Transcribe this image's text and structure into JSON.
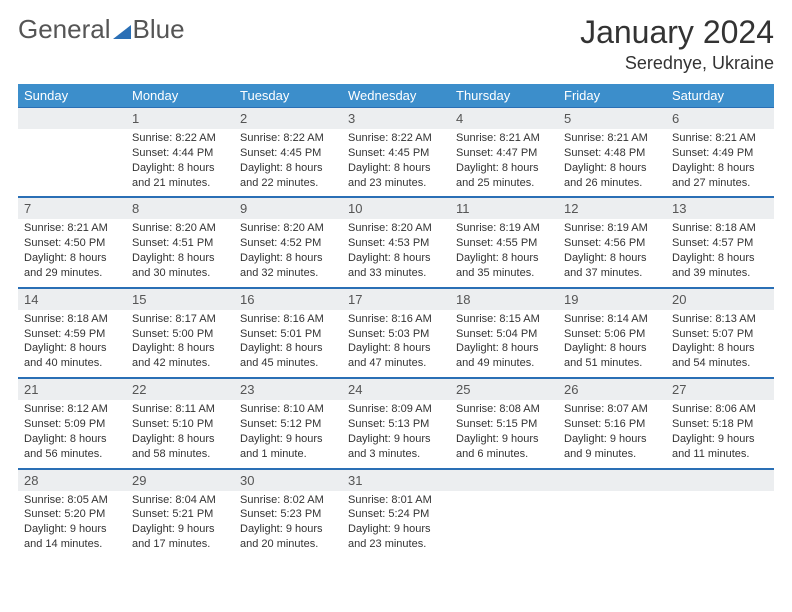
{
  "brand": {
    "part1": "General",
    "part2": "Blue"
  },
  "title": "January 2024",
  "location": "Serednye, Ukraine",
  "colors": {
    "header_bg": "#3c8ecb",
    "rule": "#2a6fb5",
    "daynum_bg": "#eceef0",
    "text": "#333333"
  },
  "fonts": {
    "title_size": 32,
    "location_size": 18,
    "header_size": 13,
    "body_size": 11
  },
  "daysOfWeek": [
    "Sunday",
    "Monday",
    "Tuesday",
    "Wednesday",
    "Thursday",
    "Friday",
    "Saturday"
  ],
  "weeks": [
    [
      {
        "num": "",
        "sunrise": "",
        "sunset": "",
        "daylight": ""
      },
      {
        "num": "1",
        "sunrise": "Sunrise: 8:22 AM",
        "sunset": "Sunset: 4:44 PM",
        "daylight": "Daylight: 8 hours and 21 minutes."
      },
      {
        "num": "2",
        "sunrise": "Sunrise: 8:22 AM",
        "sunset": "Sunset: 4:45 PM",
        "daylight": "Daylight: 8 hours and 22 minutes."
      },
      {
        "num": "3",
        "sunrise": "Sunrise: 8:22 AM",
        "sunset": "Sunset: 4:45 PM",
        "daylight": "Daylight: 8 hours and 23 minutes."
      },
      {
        "num": "4",
        "sunrise": "Sunrise: 8:21 AM",
        "sunset": "Sunset: 4:47 PM",
        "daylight": "Daylight: 8 hours and 25 minutes."
      },
      {
        "num": "5",
        "sunrise": "Sunrise: 8:21 AM",
        "sunset": "Sunset: 4:48 PM",
        "daylight": "Daylight: 8 hours and 26 minutes."
      },
      {
        "num": "6",
        "sunrise": "Sunrise: 8:21 AM",
        "sunset": "Sunset: 4:49 PM",
        "daylight": "Daylight: 8 hours and 27 minutes."
      }
    ],
    [
      {
        "num": "7",
        "sunrise": "Sunrise: 8:21 AM",
        "sunset": "Sunset: 4:50 PM",
        "daylight": "Daylight: 8 hours and 29 minutes."
      },
      {
        "num": "8",
        "sunrise": "Sunrise: 8:20 AM",
        "sunset": "Sunset: 4:51 PM",
        "daylight": "Daylight: 8 hours and 30 minutes."
      },
      {
        "num": "9",
        "sunrise": "Sunrise: 8:20 AM",
        "sunset": "Sunset: 4:52 PM",
        "daylight": "Daylight: 8 hours and 32 minutes."
      },
      {
        "num": "10",
        "sunrise": "Sunrise: 8:20 AM",
        "sunset": "Sunset: 4:53 PM",
        "daylight": "Daylight: 8 hours and 33 minutes."
      },
      {
        "num": "11",
        "sunrise": "Sunrise: 8:19 AM",
        "sunset": "Sunset: 4:55 PM",
        "daylight": "Daylight: 8 hours and 35 minutes."
      },
      {
        "num": "12",
        "sunrise": "Sunrise: 8:19 AM",
        "sunset": "Sunset: 4:56 PM",
        "daylight": "Daylight: 8 hours and 37 minutes."
      },
      {
        "num": "13",
        "sunrise": "Sunrise: 8:18 AM",
        "sunset": "Sunset: 4:57 PM",
        "daylight": "Daylight: 8 hours and 39 minutes."
      }
    ],
    [
      {
        "num": "14",
        "sunrise": "Sunrise: 8:18 AM",
        "sunset": "Sunset: 4:59 PM",
        "daylight": "Daylight: 8 hours and 40 minutes."
      },
      {
        "num": "15",
        "sunrise": "Sunrise: 8:17 AM",
        "sunset": "Sunset: 5:00 PM",
        "daylight": "Daylight: 8 hours and 42 minutes."
      },
      {
        "num": "16",
        "sunrise": "Sunrise: 8:16 AM",
        "sunset": "Sunset: 5:01 PM",
        "daylight": "Daylight: 8 hours and 45 minutes."
      },
      {
        "num": "17",
        "sunrise": "Sunrise: 8:16 AM",
        "sunset": "Sunset: 5:03 PM",
        "daylight": "Daylight: 8 hours and 47 minutes."
      },
      {
        "num": "18",
        "sunrise": "Sunrise: 8:15 AM",
        "sunset": "Sunset: 5:04 PM",
        "daylight": "Daylight: 8 hours and 49 minutes."
      },
      {
        "num": "19",
        "sunrise": "Sunrise: 8:14 AM",
        "sunset": "Sunset: 5:06 PM",
        "daylight": "Daylight: 8 hours and 51 minutes."
      },
      {
        "num": "20",
        "sunrise": "Sunrise: 8:13 AM",
        "sunset": "Sunset: 5:07 PM",
        "daylight": "Daylight: 8 hours and 54 minutes."
      }
    ],
    [
      {
        "num": "21",
        "sunrise": "Sunrise: 8:12 AM",
        "sunset": "Sunset: 5:09 PM",
        "daylight": "Daylight: 8 hours and 56 minutes."
      },
      {
        "num": "22",
        "sunrise": "Sunrise: 8:11 AM",
        "sunset": "Sunset: 5:10 PM",
        "daylight": "Daylight: 8 hours and 58 minutes."
      },
      {
        "num": "23",
        "sunrise": "Sunrise: 8:10 AM",
        "sunset": "Sunset: 5:12 PM",
        "daylight": "Daylight: 9 hours and 1 minute."
      },
      {
        "num": "24",
        "sunrise": "Sunrise: 8:09 AM",
        "sunset": "Sunset: 5:13 PM",
        "daylight": "Daylight: 9 hours and 3 minutes."
      },
      {
        "num": "25",
        "sunrise": "Sunrise: 8:08 AM",
        "sunset": "Sunset: 5:15 PM",
        "daylight": "Daylight: 9 hours and 6 minutes."
      },
      {
        "num": "26",
        "sunrise": "Sunrise: 8:07 AM",
        "sunset": "Sunset: 5:16 PM",
        "daylight": "Daylight: 9 hours and 9 minutes."
      },
      {
        "num": "27",
        "sunrise": "Sunrise: 8:06 AM",
        "sunset": "Sunset: 5:18 PM",
        "daylight": "Daylight: 9 hours and 11 minutes."
      }
    ],
    [
      {
        "num": "28",
        "sunrise": "Sunrise: 8:05 AM",
        "sunset": "Sunset: 5:20 PM",
        "daylight": "Daylight: 9 hours and 14 minutes."
      },
      {
        "num": "29",
        "sunrise": "Sunrise: 8:04 AM",
        "sunset": "Sunset: 5:21 PM",
        "daylight": "Daylight: 9 hours and 17 minutes."
      },
      {
        "num": "30",
        "sunrise": "Sunrise: 8:02 AM",
        "sunset": "Sunset: 5:23 PM",
        "daylight": "Daylight: 9 hours and 20 minutes."
      },
      {
        "num": "31",
        "sunrise": "Sunrise: 8:01 AM",
        "sunset": "Sunset: 5:24 PM",
        "daylight": "Daylight: 9 hours and 23 minutes."
      },
      {
        "num": "",
        "sunrise": "",
        "sunset": "",
        "daylight": ""
      },
      {
        "num": "",
        "sunrise": "",
        "sunset": "",
        "daylight": ""
      },
      {
        "num": "",
        "sunrise": "",
        "sunset": "",
        "daylight": ""
      }
    ]
  ]
}
